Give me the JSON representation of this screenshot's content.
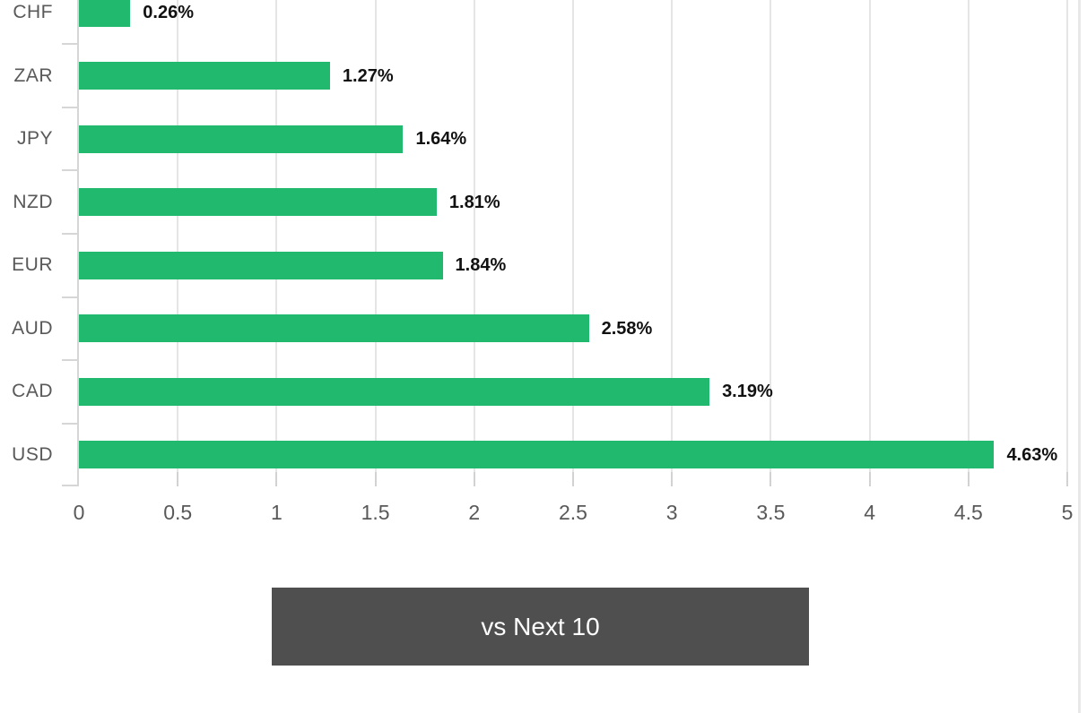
{
  "chart_data": {
    "type": "bar",
    "orientation": "horizontal",
    "title": "",
    "xlabel": "",
    "ylabel": "",
    "categories": [
      "CHF",
      "ZAR",
      "JPY",
      "NZD",
      "EUR",
      "AUD",
      "CAD",
      "USD"
    ],
    "values": [
      0.26,
      1.27,
      1.64,
      1.81,
      1.84,
      2.58,
      3.19,
      4.63
    ],
    "value_labels": [
      "0.26%",
      "1.27%",
      "1.64%",
      "1.81%",
      "1.84%",
      "2.58%",
      "3.19%",
      "4.63%"
    ],
    "xlim": [
      0,
      5
    ],
    "x_ticks": [
      0,
      0.5,
      1,
      1.5,
      2,
      2.5,
      3,
      3.5,
      4,
      4.5,
      5
    ],
    "x_tick_labels": [
      "0",
      "0.5",
      "1",
      "1.5",
      "2",
      "2.5",
      "3",
      "3.5",
      "4",
      "4.5",
      "5"
    ],
    "grid": true,
    "bar_color": "#21b96e",
    "note": "topmost row (CHF) is partially cropped at the top edge of the viewport"
  },
  "button": {
    "label": "vs Next 10",
    "background": "#4f4f4f",
    "text_color": "#ffffff"
  },
  "colors": {
    "background": "#ffffff",
    "gridline": "#e5e5e5",
    "axis": "#d6d6d6",
    "tick_label": "#595959",
    "category_label": "#595959",
    "value_label": "#111111"
  }
}
